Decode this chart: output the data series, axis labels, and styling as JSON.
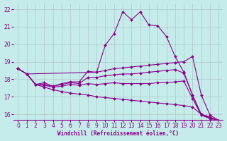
{
  "background_color": "#c5ecea",
  "grid_color": "#b0c8c8",
  "line_color": "#8b008b",
  "xlabel": "Windchill (Refroidissement éolien,°C)",
  "xlabel_color": "#8b008b",
  "ylim": [
    15.7,
    22.3
  ],
  "xlim": [
    -0.5,
    23.5
  ],
  "yticks": [
    16,
    17,
    18,
    19,
    20,
    21,
    22
  ],
  "xticks": [
    0,
    1,
    2,
    3,
    4,
    5,
    6,
    7,
    8,
    9,
    10,
    11,
    12,
    13,
    14,
    15,
    16,
    17,
    18,
    19,
    20,
    21,
    22,
    23
  ],
  "lines": [
    {
      "x": [
        0,
        1,
        2,
        3,
        4,
        5,
        6,
        7,
        8,
        9,
        10,
        11,
        12,
        13,
        14,
        15,
        16,
        17,
        18,
        19,
        20,
        21,
        22,
        23
      ],
      "y": [
        18.6,
        18.3,
        17.7,
        17.8,
        17.6,
        17.75,
        17.85,
        17.85,
        18.45,
        18.4,
        19.95,
        20.6,
        21.85,
        21.4,
        21.85,
        21.1,
        21.05,
        20.45,
        19.3,
        18.4,
        17.1,
        15.95,
        15.8,
        15.65
      ]
    },
    {
      "x": [
        0,
        1,
        9,
        10,
        11,
        12,
        13,
        14,
        15,
        16,
        17,
        18,
        19,
        20,
        21,
        22,
        23
      ],
      "y": [
        18.6,
        18.3,
        18.4,
        18.5,
        18.6,
        18.65,
        18.7,
        18.75,
        18.8,
        18.85,
        18.9,
        18.95,
        19.0,
        19.3,
        17.1,
        15.95,
        15.65
      ]
    },
    {
      "x": [
        0,
        1,
        2,
        3,
        4,
        5,
        6,
        7,
        8,
        9,
        10,
        11,
        12,
        13,
        14,
        15,
        16,
        17,
        18,
        19,
        20,
        21,
        22,
        23
      ],
      "y": [
        18.6,
        18.3,
        17.7,
        17.7,
        17.6,
        17.7,
        17.8,
        17.75,
        18.1,
        18.1,
        18.2,
        18.25,
        18.3,
        18.3,
        18.35,
        18.4,
        18.45,
        18.5,
        18.55,
        18.35,
        17.1,
        16.0,
        15.85,
        15.6
      ]
    },
    {
      "x": [
        0,
        1,
        2,
        3,
        4,
        5,
        6,
        7,
        8,
        9,
        10,
        11,
        12,
        13,
        14,
        15,
        16,
        17,
        18,
        19,
        20,
        21,
        22,
        23
      ],
      "y": [
        18.6,
        18.3,
        17.7,
        17.65,
        17.55,
        17.6,
        17.7,
        17.65,
        17.75,
        17.7,
        17.75,
        17.8,
        17.75,
        17.75,
        17.75,
        17.75,
        17.8,
        17.8,
        17.85,
        17.9,
        16.9,
        15.95,
        15.75,
        15.5
      ]
    },
    {
      "x": [
        0,
        1,
        2,
        3,
        4,
        5,
        6,
        7,
        8,
        9,
        10,
        11,
        12,
        13,
        14,
        15,
        16,
        17,
        18,
        19,
        20,
        21,
        22,
        23
      ],
      "y": [
        18.6,
        18.3,
        17.7,
        17.55,
        17.4,
        17.3,
        17.2,
        17.15,
        17.1,
        17.0,
        16.95,
        16.9,
        16.85,
        16.8,
        16.75,
        16.7,
        16.65,
        16.6,
        16.55,
        16.5,
        16.4,
        16.0,
        15.8,
        15.6
      ]
    }
  ]
}
